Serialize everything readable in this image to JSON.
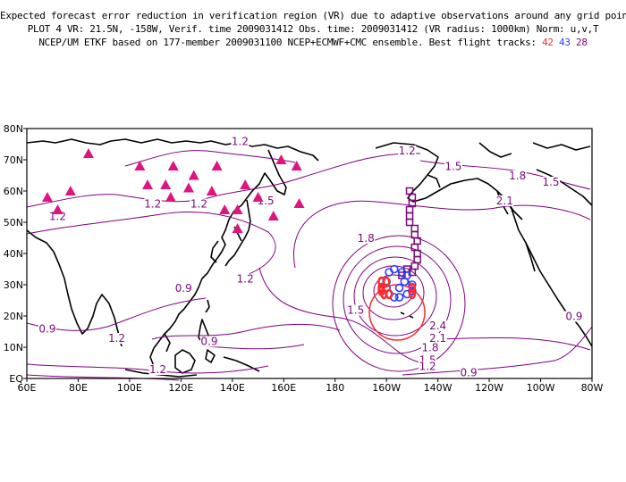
{
  "header": {
    "line1": "Expected forecast error reduction in verification region (VR) due to adaptive observations around any grid point.",
    "line2": "PLOT 4 VR: 21.5N, -158W, Verif. time 2009031412 Obs. time: 2009031412 (VR radius: 1000km) Norm: u,v,T",
    "line3_prefix": "NCEP/UM ETKF based on 177-member 2009031100 NCEP+ECMWF+CMC ensemble. Best flight tracks:",
    "track_numbers": [
      "42",
      "43",
      "28"
    ]
  },
  "colors": {
    "contour": "#800080",
    "track_red": "#ff2a2a",
    "track_blue": "#2b3cff",
    "track_purple": "#7a0a7a",
    "triangle": "#e0147f",
    "coast": "#000000"
  },
  "chart_data": {
    "type": "contour-map",
    "x_range": [
      60,
      280
    ],
    "y_range": [
      0,
      80
    ],
    "x_ticks": [
      "60E",
      "80E",
      "100E",
      "120E",
      "140E",
      "160E",
      "180",
      "160W",
      "140W",
      "120W",
      "100W",
      "80W"
    ],
    "y_ticks": [
      "EQ",
      "10N",
      "20N",
      "30N",
      "40N",
      "50N",
      "60N",
      "70N",
      "80N"
    ],
    "contour_labels": [
      {
        "text": "1.2",
        "lon": 109,
        "lat": 55
      },
      {
        "text": "1.2",
        "lon": 72,
        "lat": 51
      },
      {
        "text": "1.2",
        "lon": 127,
        "lat": 55
      },
      {
        "text": "1.2",
        "lon": 143,
        "lat": 75
      },
      {
        "text": "1.5",
        "lon": 153,
        "lat": 56
      },
      {
        "text": "1.2",
        "lon": 208,
        "lat": 72
      },
      {
        "text": "1.5",
        "lon": 226,
        "lat": 67
      },
      {
        "text": "1.8",
        "lon": 251,
        "lat": 64
      },
      {
        "text": "2.1",
        "lon": 246,
        "lat": 56
      },
      {
        "text": "1.5",
        "lon": 264,
        "lat": 62
      },
      {
        "text": "1.8",
        "lon": 192,
        "lat": 44
      },
      {
        "text": "1.2",
        "lon": 145,
        "lat": 31
      },
      {
        "text": "0.9",
        "lon": 121,
        "lat": 28
      },
      {
        "text": "0.9",
        "lon": 68,
        "lat": 15
      },
      {
        "text": "1.5",
        "lon": 188,
        "lat": 21
      },
      {
        "text": "1.2",
        "lon": 95,
        "lat": 12
      },
      {
        "text": "0.9",
        "lon": 131,
        "lat": 11
      },
      {
        "text": "1.2",
        "lon": 111,
        "lat": 2
      },
      {
        "text": "2.4",
        "lon": 220,
        "lat": 16
      },
      {
        "text": "2.1",
        "lon": 220,
        "lat": 12
      },
      {
        "text": "1.8",
        "lon": 217,
        "lat": 9
      },
      {
        "text": "1.5",
        "lon": 216,
        "lat": 5
      },
      {
        "text": "1.2",
        "lon": 216,
        "lat": 3
      },
      {
        "text": "0.9",
        "lon": 232,
        "lat": 1
      },
      {
        "text": "0.9",
        "lon": 273,
        "lat": 19
      }
    ],
    "triangles": [
      [
        68,
        58
      ],
      [
        84,
        72
      ],
      [
        72,
        54
      ],
      [
        77,
        60
      ],
      [
        104,
        68
      ],
      [
        107,
        62
      ],
      [
        114,
        62
      ],
      [
        116,
        58
      ],
      [
        123,
        61
      ],
      [
        117,
        68
      ],
      [
        125,
        65
      ],
      [
        134,
        68
      ],
      [
        132,
        60
      ],
      [
        137,
        54
      ],
      [
        142,
        48
      ],
      [
        142,
        54
      ],
      [
        145,
        62
      ],
      [
        150,
        58
      ],
      [
        159,
        70
      ],
      [
        165,
        68
      ],
      [
        166,
        56
      ],
      [
        156,
        52
      ]
    ],
    "track_purple": [
      [
        209,
        60
      ],
      [
        210,
        58
      ],
      [
        210,
        56
      ],
      [
        209,
        54
      ],
      [
        209,
        52
      ],
      [
        209,
        50
      ],
      [
        211,
        48
      ],
      [
        211,
        46
      ],
      [
        212,
        44
      ],
      [
        211,
        42
      ],
      [
        212,
        40
      ],
      [
        212,
        38
      ],
      [
        211,
        36
      ],
      [
        210,
        34
      ],
      [
        208,
        35
      ],
      [
        206,
        33
      ]
    ],
    "track_blue": [
      [
        201,
        34
      ],
      [
        203,
        35
      ],
      [
        206,
        34
      ],
      [
        208,
        33
      ],
      [
        210,
        30
      ],
      [
        210,
        28
      ],
      [
        208,
        27
      ],
      [
        205,
        26
      ],
      [
        203,
        26
      ],
      [
        201,
        27
      ],
      [
        200,
        29
      ],
      [
        200,
        31
      ],
      [
        207,
        31
      ],
      [
        205,
        29
      ]
    ],
    "track_red": [
      [
        198,
        31
      ],
      [
        198,
        29
      ],
      [
        198,
        28
      ],
      [
        199,
        27
      ],
      [
        200,
        31
      ],
      [
        201,
        27
      ],
      [
        210,
        27
      ],
      [
        210,
        29
      ]
    ]
  }
}
